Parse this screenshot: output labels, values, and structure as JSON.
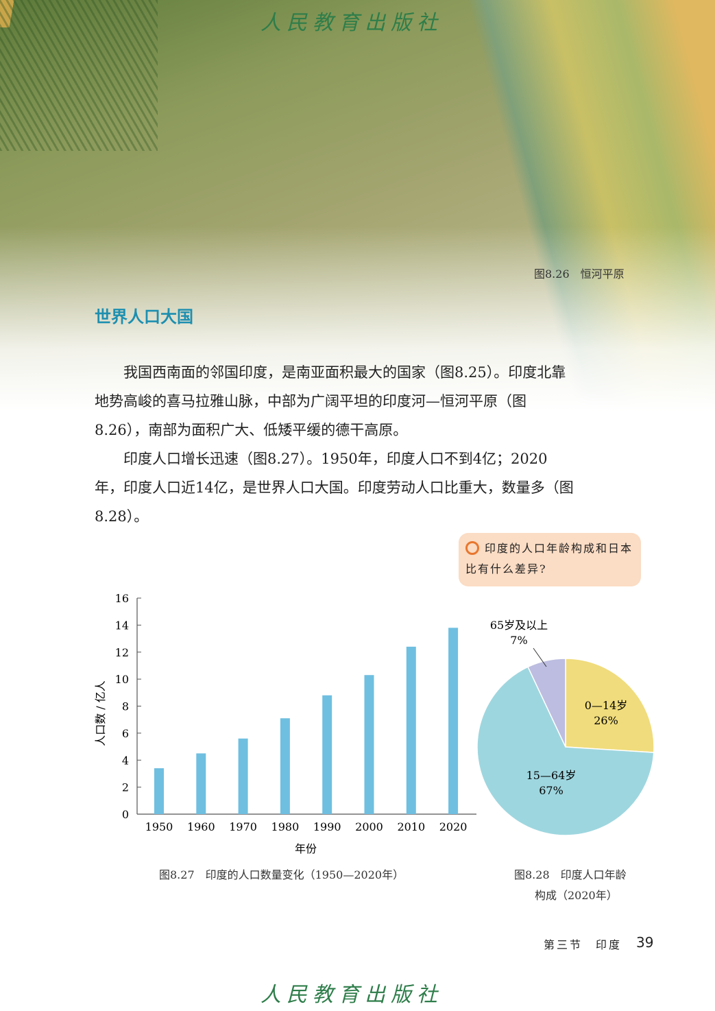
{
  "header": {
    "publisher_logo": "人民教育出版社"
  },
  "photo": {
    "caption": "图8.26　恒河平原"
  },
  "section": {
    "title": "世界人口大国"
  },
  "body": {
    "paragraphs": [
      "　　我国西南面的邻国印度，是南亚面积最大的国家（图8.25）。印度北靠地势高峻的喜马拉雅山脉，中部为广阔平坦的印度河—恒河平原（图8.26），南部为面积广大、低矮平缓的德干高原。",
      "　　印度人口增长迅速（图8.27）。1950年，印度人口不到4亿；2020年，印度人口近14亿，是世界人口大国。印度劳动人口比重大，数量多（图8.28）。"
    ]
  },
  "think_bubble": {
    "icon": "lightbulb-icon",
    "text": "印度的人口年龄构成和日本比有什么差异?"
  },
  "chart_data": [
    {
      "type": "bar",
      "title": "",
      "caption": "图8.27　印度的人口数量变化（1950—2020年）",
      "categories": [
        "1950",
        "1960",
        "1970",
        "1980",
        "1990",
        "2000",
        "2010",
        "2020"
      ],
      "values": [
        3.4,
        4.5,
        5.6,
        7.1,
        8.8,
        10.3,
        12.4,
        13.8
      ],
      "xlabel": "年份",
      "ylabel": "人口数 / 亿人",
      "ylim": [
        0,
        16
      ],
      "yticks": [
        "0",
        "2",
        "4",
        "6",
        "8",
        "10",
        "12",
        "14",
        "16"
      ],
      "grid": false,
      "color": "#6fbfe0"
    },
    {
      "type": "pie",
      "title": "",
      "caption_lines": [
        "图8.28　印度人口年龄",
        "构成（2020年）"
      ],
      "slices": [
        {
          "label": "0—14岁",
          "value": 26,
          "pct": "26%",
          "color": "#f0dc7c"
        },
        {
          "label": "15—64岁",
          "value": 67,
          "pct": "67%",
          "color": "#9ed6df"
        },
        {
          "label": "65岁及以上",
          "value": 7,
          "pct": "7%",
          "color": "#bcbde0"
        }
      ]
    }
  ],
  "footer": {
    "section": "第三节　印度",
    "page": "39",
    "publisher_logo": "人民教育出版社"
  }
}
